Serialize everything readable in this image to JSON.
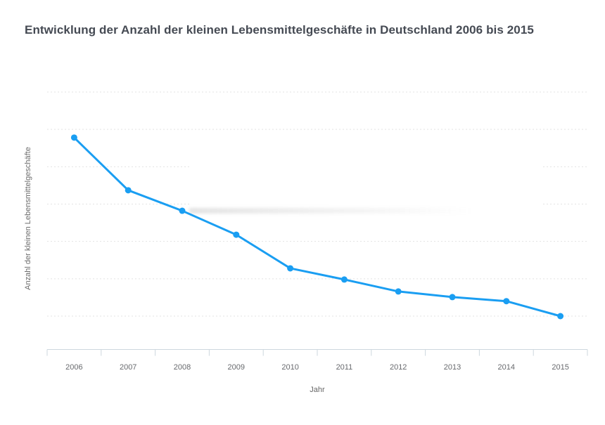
{
  "title": {
    "text": "Entwicklung der Anzahl der kleinen Lebensmittelgeschäfte in Deutschland 2006 bis 2015",
    "color": "#454a53"
  },
  "chart_data": {
    "type": "line",
    "title": "Entwicklung der Anzahl der kleinen Lebensmittelgeschäfte in Deutschland 2006 bis 2015",
    "xlabel": "Jahr",
    "ylabel": "Anzahl der kleinen Lebensmittelgeschäfte",
    "categories": [
      "2006",
      "2007",
      "2008",
      "2009",
      "2010",
      "2011",
      "2012",
      "2013",
      "2014",
      "2015"
    ],
    "series": [
      {
        "name": "Anzahl der kleinen Lebensmittelgeschäfte",
        "values_gridline_units": [
          4.78,
          3.37,
          2.82,
          2.18,
          1.28,
          0.98,
          0.66,
          0.51,
          0.4,
          0.0
        ]
      }
    ],
    "y_axis": {
      "tick_labels_visible": false,
      "gridline_count": 7,
      "gridline_style": "dashed",
      "note": "No numeric y-axis labels are shown in the image; series values are expressed in gridline steps above the lowest gridline."
    },
    "x_axis": {
      "tick_labels_visible": true,
      "ticks_between_categories": true
    },
    "legend": "none",
    "grid": "horizontal-dashed",
    "colors": {
      "line": "#1a9ef2",
      "marker": "#1a9ef2",
      "gridline": "#e3e3e3",
      "axis": "#cdd7de",
      "tick_label": "#67696d",
      "title": "#454a53",
      "axis_title": "#6c6c6c",
      "background": "#ffffff"
    },
    "marker": "circle"
  }
}
